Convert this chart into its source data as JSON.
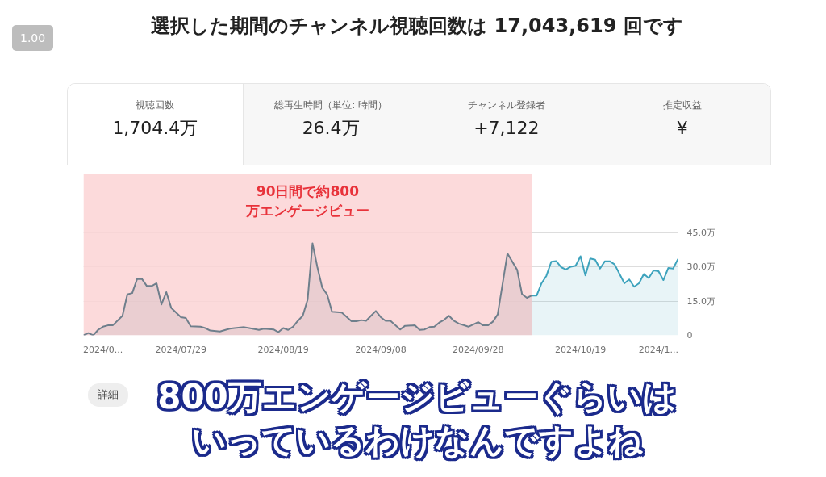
{
  "chart_data": {
    "type": "area",
    "title": "選択した期間のチャンネル視聴回数は 17,043,619 回です",
    "annotations": [
      "1.00",
      "視聴回数",
      "1,704.4万",
      "総再生時間（単位: 時間）",
      "26.4万",
      "チャンネル登録者",
      "+7,122",
      "推定収益",
      "¥",
      "詳細",
      "800万エンゲージビューぐらいは",
      "いっているわけなんですよね"
    ],
    "series": [
      {
        "color": "#6f7f8c",
        "x": [
          "2024-07-09",
          "2024-07-10",
          "2024-07-11",
          "2024-07-12",
          "2024-07-13",
          "2024-07-14",
          "2024-07-15",
          "2024-07-17",
          "2024-07-18",
          "2024-07-19",
          "2024-07-20",
          "2024-07-21",
          "2024-07-22",
          "2024-07-23",
          "2024-07-24",
          "2024-07-25",
          "2024-07-26",
          "2024-07-27",
          "2024-07-29",
          "2024-07-30",
          "2024-07-31",
          "2024-08-02",
          "2024-08-03",
          "2024-08-04",
          "2024-08-06",
          "2024-08-08",
          "2024-08-09",
          "2024-08-11",
          "2024-08-12",
          "2024-08-14",
          "2024-08-15",
          "2024-08-17",
          "2024-08-18",
          "2024-08-19",
          "2024-08-20",
          "2024-08-21",
          "2024-08-22",
          "2024-08-23",
          "2024-08-24",
          "2024-08-25",
          "2024-08-26",
          "2024-08-27",
          "2024-08-28",
          "2024-08-29",
          "2024-08-31",
          "2024-09-02",
          "2024-09-03",
          "2024-09-04",
          "2024-09-05",
          "2024-09-06",
          "2024-09-07",
          "2024-09-08",
          "2024-09-09",
          "2024-09-10",
          "2024-09-12",
          "2024-09-13",
          "2024-09-15",
          "2024-09-16",
          "2024-09-17",
          "2024-09-18",
          "2024-09-19",
          "2024-09-20",
          "2024-09-21",
          "2024-09-22",
          "2024-09-23",
          "2024-09-24",
          "2024-09-26",
          "2024-09-28",
          "2024-09-29",
          "2024-09-30",
          "2024-10-01",
          "2024-10-02",
          "2024-10-04",
          "2024-10-06",
          "2024-10-07",
          "2024-10-08",
          "2024-10-09"
        ],
        "values": [
          0,
          1,
          0,
          2.4,
          3.8,
          4.4,
          4.4,
          8.6,
          18,
          18.6,
          24.8,
          24.8,
          21.7,
          21.7,
          22.9,
          13.6,
          19,
          12.1,
          8,
          7.6,
          4,
          3.8,
          3.2,
          2.1,
          1.7,
          2.9,
          3.2,
          3.6,
          3.2,
          2.4,
          2.9,
          2.6,
          1.4,
          3.2,
          2.4,
          3.8,
          6.4,
          8.6,
          15.7,
          40.5,
          30,
          21,
          18,
          10.4,
          10,
          6.2,
          6.2,
          6.7,
          6.4,
          8.6,
          10.7,
          8,
          6.4,
          6.4,
          2.6,
          4.2,
          4.4,
          2.4,
          2.6,
          3.6,
          3.8,
          5.6,
          6.8,
          8.6,
          6.4,
          5.2,
          3.8,
          5.8,
          4.4,
          4.4,
          6,
          9.2,
          36,
          28.8,
          18.1,
          16.5,
          17.5
        ]
      },
      {
        "color": "#3ea3bd",
        "x": [
          "2024-10-09",
          "2024-10-10",
          "2024-10-11",
          "2024-10-12",
          "2024-10-13",
          "2024-10-14",
          "2024-10-15",
          "2024-10-16",
          "2024-10-17",
          "2024-10-18",
          "2024-10-19",
          "2024-10-20",
          "2024-10-21",
          "2024-10-22",
          "2024-10-23",
          "2024-10-24",
          "2024-10-25",
          "2024-10-26",
          "2024-10-28",
          "2024-10-29",
          "2024-10-30",
          "2024-10-31",
          "2024-11-01",
          "2024-11-02",
          "2024-11-03",
          "2024-11-04",
          "2024-11-05",
          "2024-11-06",
          "2024-11-07",
          "2024-11-08"
        ],
        "values": [
          17.5,
          17.5,
          22.9,
          26.2,
          32.4,
          32.7,
          30,
          29,
          30.2,
          30.6,
          34.8,
          26.4,
          33.8,
          33.3,
          29.4,
          32.6,
          32.6,
          31.2,
          22.9,
          24.6,
          21.4,
          22.9,
          27,
          25.2,
          28.6,
          28.2,
          24.3,
          29.6,
          29.4,
          33.6
        ]
      }
    ],
    "xlim": [
      "2024-07-09",
      "2024-11-08"
    ],
    "xticks": [
      {
        "value": "2024-07-13",
        "label": "2024/0..."
      },
      {
        "value": "2024-07-29",
        "label": "2024/07/29"
      },
      {
        "value": "2024-08-19",
        "label": "2024/08/19"
      },
      {
        "value": "2024-09-08",
        "label": "2024/09/08"
      },
      {
        "value": "2024-09-28",
        "label": "2024/09/28"
      },
      {
        "value": "2024-10-19",
        "label": "2024/10/19"
      },
      {
        "value": "2024-11-04",
        "label": "2024/1..."
      }
    ],
    "ylim": [
      0,
      71
    ],
    "yticks": [
      0,
      {
        "value": 15,
        "label": "15.0万"
      },
      {
        "value": 30,
        "label": "30.0万"
      },
      {
        "value": 45,
        "label": "45.0万"
      }
    ],
    "grid": "y",
    "bands": [
      {
        "axis": "x",
        "from": "2024-07-09",
        "to": "2024-10-09",
        "label": "90日間で約800万エンゲージビュー",
        "color": "#fbd3d5"
      }
    ]
  }
}
